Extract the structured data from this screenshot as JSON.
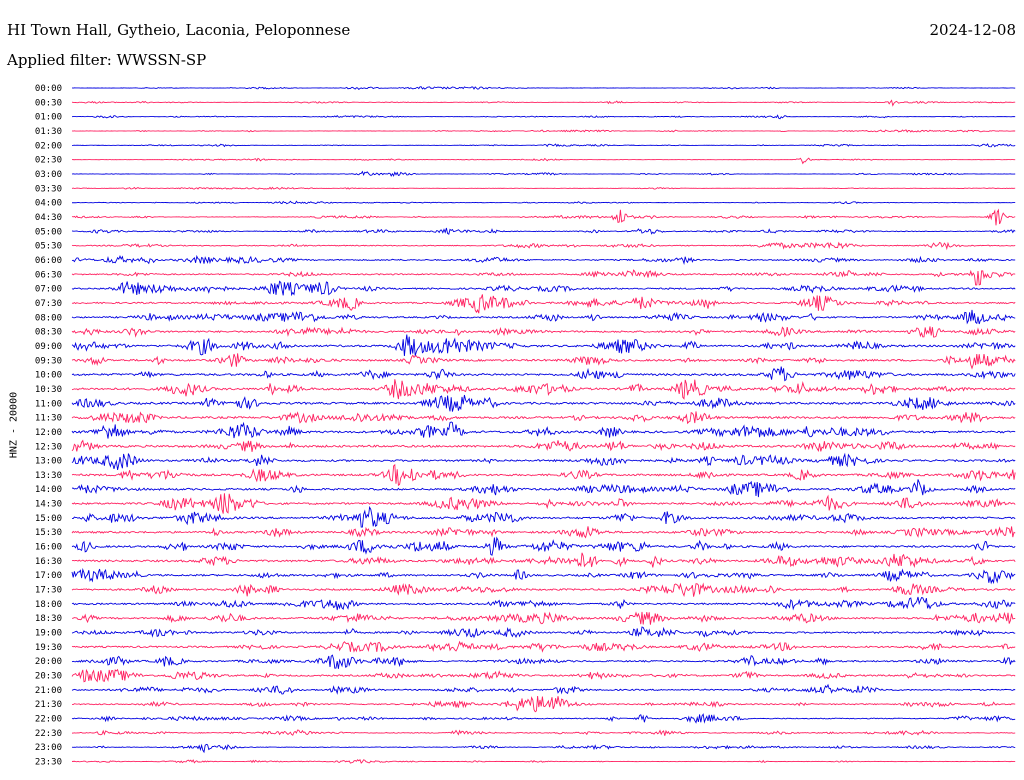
{
  "header": {
    "station": "HI Town Hall, Gytheio, Laconia, Peloponnese",
    "date": "2024-12-08",
    "filter": "Applied filter: WWSSN-SP"
  },
  "chart_data": {
    "type": "line",
    "ylabel": "HNZ - 20000",
    "row_labels": [
      "00:00",
      "00:30",
      "01:00",
      "01:30",
      "02:00",
      "02:30",
      "03:00",
      "03:30",
      "04:00",
      "04:30",
      "05:00",
      "05:30",
      "06:00",
      "06:30",
      "07:00",
      "07:30",
      "08:00",
      "08:30",
      "09:00",
      "09:30",
      "10:00",
      "10:30",
      "11:00",
      "11:30",
      "12:00",
      "12:30",
      "13:00",
      "13:30",
      "14:00",
      "14:30",
      "15:00",
      "15:30",
      "16:00",
      "16:30",
      "17:00",
      "17:30",
      "18:00",
      "18:30",
      "19:00",
      "19:30",
      "20:00",
      "20:30",
      "21:00",
      "21:30",
      "22:00",
      "22:30",
      "23:00",
      "23:30"
    ],
    "series_colors": [
      "#0000e0",
      "#ff2060"
    ],
    "row_noise_amplitude": [
      0.3,
      0.3,
      0.3,
      0.3,
      0.3,
      0.3,
      0.3,
      0.3,
      0.4,
      0.5,
      0.8,
      1.0,
      1.2,
      1.4,
      1.6,
      1.6,
      1.6,
      1.8,
      2.0,
      2.0,
      2.2,
      2.2,
      2.2,
      2.2,
      2.2,
      2.2,
      2.0,
      2.0,
      2.0,
      2.0,
      2.0,
      2.0,
      2.0,
      2.0,
      1.8,
      1.8,
      1.8,
      1.8,
      1.8,
      1.8,
      1.6,
      1.6,
      1.4,
      1.2,
      1.0,
      0.8,
      0.6,
      0.4
    ],
    "events": [
      {
        "row": 9,
        "t": 0.58,
        "amp": 9
      },
      {
        "row": 9,
        "t": 0.98,
        "amp": 9
      },
      {
        "row": 13,
        "t": 0.96,
        "amp": 10
      },
      {
        "row": 15,
        "t": 0.43,
        "amp": 4
      },
      {
        "row": 18,
        "t": 0.655,
        "amp": 7
      },
      {
        "row": 18,
        "t": 0.4,
        "amp": 4
      },
      {
        "row": 21,
        "t": 0.845,
        "amp": 5
      },
      {
        "row": 22,
        "t": 0.145,
        "amp": 5
      },
      {
        "row": 27,
        "t": 0.345,
        "amp": 9
      },
      {
        "row": 27,
        "t": 0.362,
        "amp": 9
      },
      {
        "row": 27,
        "t": 0.995,
        "amp": 5
      },
      {
        "row": 28,
        "t": 0.895,
        "amp": 8
      },
      {
        "row": 28,
        "t": 0.238,
        "amp": 4
      },
      {
        "row": 30,
        "t": 0.632,
        "amp": 8
      },
      {
        "row": 46,
        "t": 0.14,
        "amp": 4
      },
      {
        "row": 44,
        "t": 0.605,
        "amp": 4
      },
      {
        "row": 6,
        "t": 0.31,
        "amp": 3
      },
      {
        "row": 5,
        "t": 0.775,
        "amp": 4
      },
      {
        "row": 1,
        "t": 0.87,
        "amp": 3
      },
      {
        "row": 2,
        "t": 0.75,
        "amp": 2
      }
    ]
  }
}
